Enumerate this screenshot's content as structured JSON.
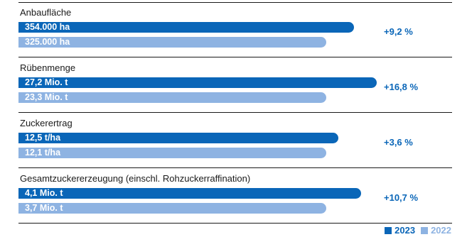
{
  "chart_data": {
    "type": "bar",
    "orientation": "horizontal",
    "groups": [
      {
        "label": "Anbaufläche",
        "change": "+9,2 %",
        "bars": [
          {
            "series": "2023",
            "value": 354000,
            "label": "354.000 ha"
          },
          {
            "series": "2022",
            "value": 325000,
            "label": "325.000 ha"
          }
        ]
      },
      {
        "label": "Rübenmenge",
        "change": "+16,8 %",
        "bars": [
          {
            "series": "2023",
            "value": 27.2,
            "label": "27,2 Mio. t"
          },
          {
            "series": "2022",
            "value": 23.3,
            "label": "23,3 Mio. t"
          }
        ]
      },
      {
        "label": "Zuckerertrag",
        "change": "+3,6 %",
        "bars": [
          {
            "series": "2023",
            "value": 12.5,
            "label": "12,5 t/ha"
          },
          {
            "series": "2022",
            "value": 12.1,
            "label": "12,1 t/ha"
          }
        ]
      },
      {
        "label": "Gesamtzuckererzeugung (einschl. Rohzuckerraffination)",
        "change": "+10,7 %",
        "bars": [
          {
            "series": "2023",
            "value": 4.1,
            "label": "4,1 Mio. t"
          },
          {
            "series": "2022",
            "value": 3.7,
            "label": "3,7 Mio. t"
          }
        ]
      }
    ],
    "legend": [
      {
        "name": "2023",
        "color": "#0a66b8"
      },
      {
        "name": "2022",
        "color": "#8eb3e2"
      }
    ],
    "legend_position": "bottom-right"
  }
}
